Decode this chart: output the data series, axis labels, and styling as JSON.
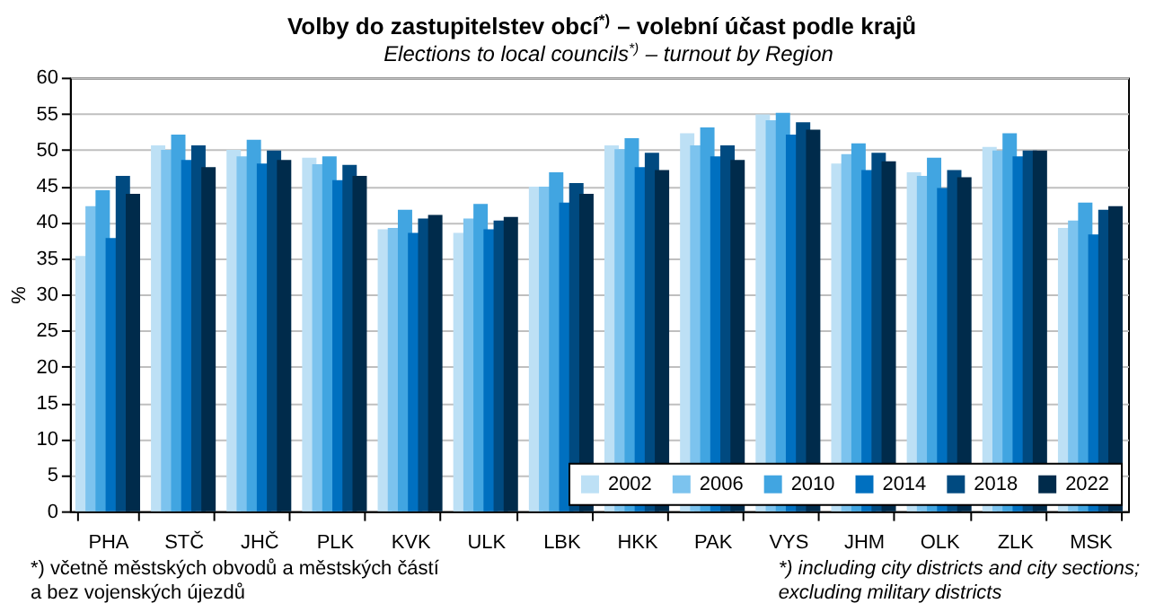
{
  "chart_data": {
    "type": "bar",
    "title": "Volby do zastupitelstev obcí$^{*)}$ – volební účast podle krajů",
    "subtitle": "Elections to local councils$^{*)}$ – turnout by Region",
    "ylabel": "%",
    "categories": [
      "PHA",
      "STČ",
      "JHČ",
      "PLK",
      "KVK",
      "ULK",
      "LBK",
      "HKK",
      "PAK",
      "VYS",
      "JHM",
      "OLK",
      "ZLK",
      "MSK"
    ],
    "series": [
      {
        "name": "2002",
        "color": "#bde0f5",
        "values": [
          35.3,
          50.6,
          50.0,
          48.9,
          39.0,
          38.5,
          44.9,
          50.6,
          52.3,
          54.9,
          48.1,
          46.9,
          50.4,
          39.2
        ]
      },
      {
        "name": "2006",
        "color": "#7cc3ee",
        "values": [
          42.2,
          50.0,
          49.1,
          48.0,
          39.2,
          40.5,
          44.9,
          50.1,
          50.6,
          54.1,
          49.4,
          46.4,
          49.9,
          40.2
        ]
      },
      {
        "name": "2010",
        "color": "#41a5e1",
        "values": [
          44.4,
          52.1,
          51.4,
          49.1,
          41.7,
          42.5,
          46.9,
          51.6,
          53.1,
          55.1,
          50.9,
          48.9,
          52.3,
          42.7
        ]
      },
      {
        "name": "2014",
        "color": "#0070c0",
        "values": [
          37.8,
          48.6,
          48.1,
          45.8,
          38.5,
          39.0,
          42.7,
          47.6,
          49.1,
          52.1,
          47.2,
          44.7,
          49.1,
          38.3
        ]
      },
      {
        "name": "2018",
        "color": "#004a80",
        "values": [
          46.4,
          50.6,
          49.9,
          47.9,
          40.5,
          40.2,
          45.4,
          49.6,
          50.6,
          53.8,
          49.6,
          47.2,
          49.9,
          41.7
        ]
      },
      {
        "name": "2022",
        "color": "#002b4b",
        "values": [
          43.9,
          47.6,
          48.6,
          46.4,
          41.0,
          40.7,
          43.9,
          47.2,
          48.6,
          52.8,
          48.4,
          46.2,
          49.9,
          42.2
        ]
      }
    ],
    "ylim": [
      0,
      60
    ],
    "yticks": [
      0,
      5,
      10,
      15,
      20,
      25,
      30,
      35,
      40,
      45,
      50,
      55,
      60
    ],
    "grid": "y",
    "legend": "bottom right",
    "annotations": [
      "*) včetně městských obvodů a městských částí\na bez vojenských újezdů",
      "*) including city districts and city sections;\nexcluding military districts"
    ]
  }
}
